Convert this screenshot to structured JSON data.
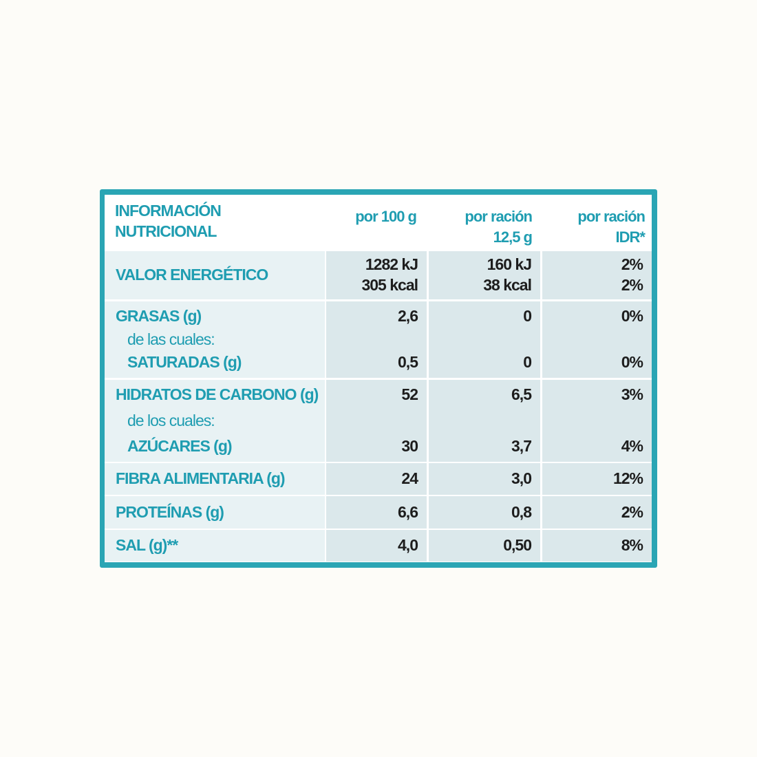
{
  "table": {
    "header": {
      "title": [
        "INFORMACIÓN",
        "NUTRICIONAL"
      ],
      "columns": [
        [
          "por 100 g"
        ],
        [
          "por ración",
          "12,5 g"
        ],
        [
          "por ración",
          "IDR*"
        ]
      ]
    },
    "rows": [
      {
        "label": [
          "VALOR ENERGÉTICO"
        ],
        "values": [
          [
            "1282 kJ",
            "305 kcal"
          ],
          [
            "160 kJ",
            "38 kcal"
          ],
          [
            "2%",
            "2%"
          ]
        ]
      },
      {
        "label": [
          "GRASAS (g)",
          "de las cuales:",
          "SATURADAS (g)"
        ],
        "values": [
          [
            "2,6",
            "0,5"
          ],
          [
            "0",
            "0"
          ],
          [
            "0%",
            "0%"
          ]
        ]
      },
      {
        "label": [
          "HIDRATOS DE CARBONO (g)",
          "de los cuales:",
          "AZÚCARES (g)"
        ],
        "values": [
          [
            "52",
            "30"
          ],
          [
            "6,5",
            "3,7"
          ],
          [
            "3%",
            "4%"
          ]
        ]
      },
      {
        "label": [
          "FIBRA ALIMENTARIA (g)"
        ],
        "values": [
          [
            "24"
          ],
          [
            "3,0"
          ],
          [
            "12%"
          ]
        ]
      },
      {
        "label": [
          "PROTEÍNAS (g)"
        ],
        "values": [
          [
            "6,6"
          ],
          [
            "0,8"
          ],
          [
            "2%"
          ]
        ]
      },
      {
        "label": [
          "SAL (g)**"
        ],
        "values": [
          [
            "4,0"
          ],
          [
            "0,50"
          ],
          [
            "8%"
          ]
        ]
      }
    ]
  }
}
